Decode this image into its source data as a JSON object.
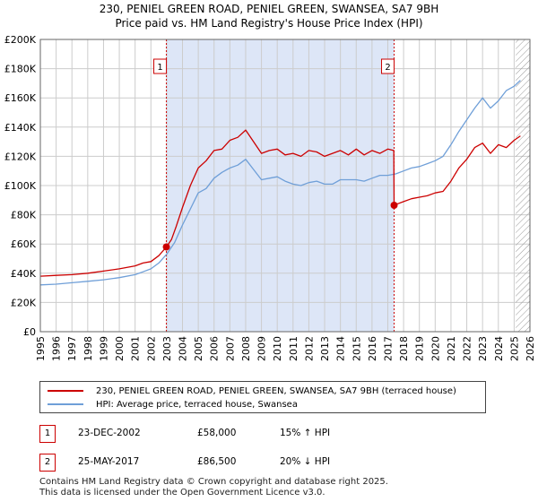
{
  "title": {
    "line1": "230, PENIEL GREEN ROAD, PENIEL GREEN, SWANSEA, SA7 9BH",
    "line2": "Price paid vs. HM Land Registry's House Price Index (HPI)"
  },
  "colors": {
    "price_line": "#cc0000",
    "hpi_line": "#6f9fd8",
    "shade": "#dde6f7",
    "grid": "#cccccc",
    "marker_line": "#cc0000",
    "hatch": "#999999"
  },
  "chart_data": {
    "type": "line",
    "xlabel": "",
    "ylabel": "",
    "xlim": [
      1995,
      2026
    ],
    "ylim": [
      0,
      200000
    ],
    "x_ticks": [
      1995,
      1996,
      1997,
      1998,
      1999,
      2000,
      2001,
      2002,
      2003,
      2004,
      2005,
      2006,
      2007,
      2008,
      2009,
      2010,
      2011,
      2012,
      2013,
      2014,
      2015,
      2016,
      2017,
      2018,
      2019,
      2020,
      2021,
      2022,
      2023,
      2024,
      2025,
      2026
    ],
    "x_tick_labels": [
      "1995",
      "1996",
      "1997",
      "1998",
      "1999",
      "2000",
      "2001",
      "2002",
      "2003",
      "2004",
      "2005",
      "2006",
      "2007",
      "2008",
      "2009",
      "2010",
      "2011",
      "2012",
      "2013",
      "2014",
      "2015",
      "2016",
      "2017",
      "2018",
      "2019",
      "2020",
      "2021",
      "2022",
      "2023",
      "2024",
      "2025",
      "2026"
    ],
    "y_ticks": [
      0,
      20000,
      40000,
      60000,
      80000,
      100000,
      120000,
      140000,
      160000,
      180000,
      200000
    ],
    "y_tick_labels": [
      "£0",
      "£20K",
      "£40K",
      "£60K",
      "£80K",
      "£100K",
      "£120K",
      "£140K",
      "£160K",
      "£180K",
      "£200K"
    ],
    "grid": true,
    "shaded_range": [
      2002.98,
      2017.4
    ],
    "hatched_from": 2025.1,
    "series": [
      {
        "name": "230, PENIEL GREEN ROAD, PENIEL GREEN, SWANSEA, SA7 9BH (terraced house)",
        "x": [
          1995.0,
          1996.0,
          1997.0,
          1998.0,
          1999.0,
          2000.0,
          2001.0,
          2001.5,
          2002.0,
          2002.5,
          2002.98,
          2003.3,
          2003.6,
          2004.0,
          2004.5,
          2005.0,
          2005.5,
          2006.0,
          2006.5,
          2007.0,
          2007.5,
          2008.0,
          2008.5,
          2009.0,
          2009.5,
          2010.0,
          2010.5,
          2011.0,
          2011.5,
          2012.0,
          2012.5,
          2013.0,
          2013.5,
          2014.0,
          2014.5,
          2015.0,
          2015.5,
          2016.0,
          2016.5,
          2017.0,
          2017.38,
          2017.4,
          2017.5,
          2018.0,
          2018.5,
          2019.0,
          2019.5,
          2020.0,
          2020.5,
          2021.0,
          2021.5,
          2022.0,
          2022.5,
          2023.0,
          2023.5,
          2024.0,
          2024.5,
          2025.0,
          2025.4
        ],
        "values": [
          38000,
          38500,
          39000,
          40000,
          41500,
          43000,
          45000,
          47000,
          48000,
          52000,
          58000,
          63000,
          72000,
          85000,
          100000,
          112000,
          117000,
          124000,
          125000,
          131000,
          133000,
          138000,
          130000,
          122000,
          124000,
          125000,
          121000,
          122000,
          120000,
          124000,
          123000,
          120000,
          122000,
          124000,
          121000,
          125000,
          121000,
          124000,
          122000,
          125000,
          124000,
          86500,
          87000,
          89000,
          91000,
          92000,
          93000,
          95000,
          96000,
          103000,
          112000,
          118000,
          126000,
          129000,
          122000,
          128000,
          126000,
          131000,
          134000
        ]
      },
      {
        "name": "HPI: Average price, terraced house, Swansea",
        "x": [
          1995.0,
          1996.0,
          1997.0,
          1998.0,
          1999.0,
          2000.0,
          2001.0,
          2001.5,
          2002.0,
          2002.5,
          2003.0,
          2003.5,
          2004.0,
          2004.5,
          2005.0,
          2005.5,
          2006.0,
          2006.5,
          2007.0,
          2007.5,
          2008.0,
          2008.5,
          2009.0,
          2009.5,
          2010.0,
          2010.5,
          2011.0,
          2011.5,
          2012.0,
          2012.5,
          2013.0,
          2013.5,
          2014.0,
          2014.5,
          2015.0,
          2015.5,
          2016.0,
          2016.5,
          2017.0,
          2017.5,
          2018.0,
          2018.5,
          2019.0,
          2019.5,
          2020.0,
          2020.5,
          2021.0,
          2021.5,
          2022.0,
          2022.5,
          2023.0,
          2023.5,
          2024.0,
          2024.5,
          2025.0,
          2025.4
        ],
        "values": [
          32000,
          32500,
          33500,
          34500,
          35500,
          37000,
          39000,
          41000,
          43000,
          47000,
          53000,
          61000,
          73000,
          84000,
          95000,
          98000,
          105000,
          109000,
          112000,
          114000,
          118000,
          111000,
          104000,
          105000,
          106000,
          103000,
          101000,
          100000,
          102000,
          103000,
          101000,
          101000,
          104000,
          104000,
          104000,
          103000,
          105000,
          107000,
          107000,
          108000,
          110000,
          112000,
          113000,
          115000,
          117000,
          120000,
          128000,
          137000,
          145000,
          153000,
          160000,
          153000,
          158000,
          165000,
          168000,
          172000
        ]
      }
    ],
    "annotations": [
      {
        "label": "1",
        "x": 2002.98,
        "value": 58000
      },
      {
        "label": "2",
        "x": 2017.4,
        "value": 86500
      }
    ]
  },
  "legend": {
    "price_label": "230, PENIEL GREEN ROAD, PENIEL GREEN, SWANSEA, SA7 9BH (terraced house)",
    "hpi_label": "HPI: Average price, terraced house, Swansea"
  },
  "transactions": [
    {
      "num": "1",
      "date": "23-DEC-2002",
      "price": "£58,000",
      "hpi": "15% ↑ HPI"
    },
    {
      "num": "2",
      "date": "25-MAY-2017",
      "price": "£86,500",
      "hpi": "20% ↓ HPI"
    }
  ],
  "footer": {
    "line1": "Contains HM Land Registry data © Crown copyright and database right 2025.",
    "line2": "This data is licensed under the Open Government Licence v3.0."
  }
}
